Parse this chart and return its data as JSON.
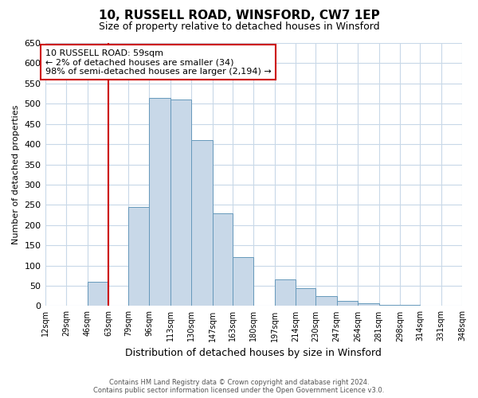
{
  "title": "10, RUSSELL ROAD, WINSFORD, CW7 1EP",
  "subtitle": "Size of property relative to detached houses in Winsford",
  "xlabel": "Distribution of detached houses by size in Winsford",
  "ylabel": "Number of detached properties",
  "footer_line1": "Contains HM Land Registry data © Crown copyright and database right 2024.",
  "footer_line2": "Contains public sector information licensed under the Open Government Licence v3.0.",
  "bin_edges": [
    12,
    29,
    46,
    63,
    79,
    96,
    113,
    130,
    147,
    163,
    180,
    197,
    214,
    230,
    247,
    264,
    281,
    298,
    314,
    331,
    348
  ],
  "bin_labels": [
    "12sqm",
    "29sqm",
    "46sqm",
    "63sqm",
    "79sqm",
    "96sqm",
    "113sqm",
    "130sqm",
    "147sqm",
    "163sqm",
    "180sqm",
    "197sqm",
    "214sqm",
    "230sqm",
    "247sqm",
    "264sqm",
    "281sqm",
    "298sqm",
    "314sqm",
    "331sqm",
    "348sqm"
  ],
  "bar_heights": [
    0,
    0,
    60,
    0,
    245,
    515,
    510,
    410,
    230,
    120,
    0,
    65,
    45,
    25,
    12,
    7,
    3,
    2,
    0,
    1
  ],
  "bar_color": "#c8d8e8",
  "bar_edgecolor": "#6699bb",
  "property_line_x": 63,
  "property_line_color": "#cc0000",
  "annotation_line1": "10 RUSSELL ROAD: 59sqm",
  "annotation_line2": "← 2% of detached houses are smaller (34)",
  "annotation_line3": "98% of semi-detached houses are larger (2,194) →",
  "annotation_box_edgecolor": "#cc0000",
  "ylim": [
    0,
    650
  ],
  "yticks": [
    0,
    50,
    100,
    150,
    200,
    250,
    300,
    350,
    400,
    450,
    500,
    550,
    600,
    650
  ],
  "background_color": "#ffffff",
  "grid_color": "#c8d8e8",
  "title_fontsize": 11,
  "subtitle_fontsize": 9
}
